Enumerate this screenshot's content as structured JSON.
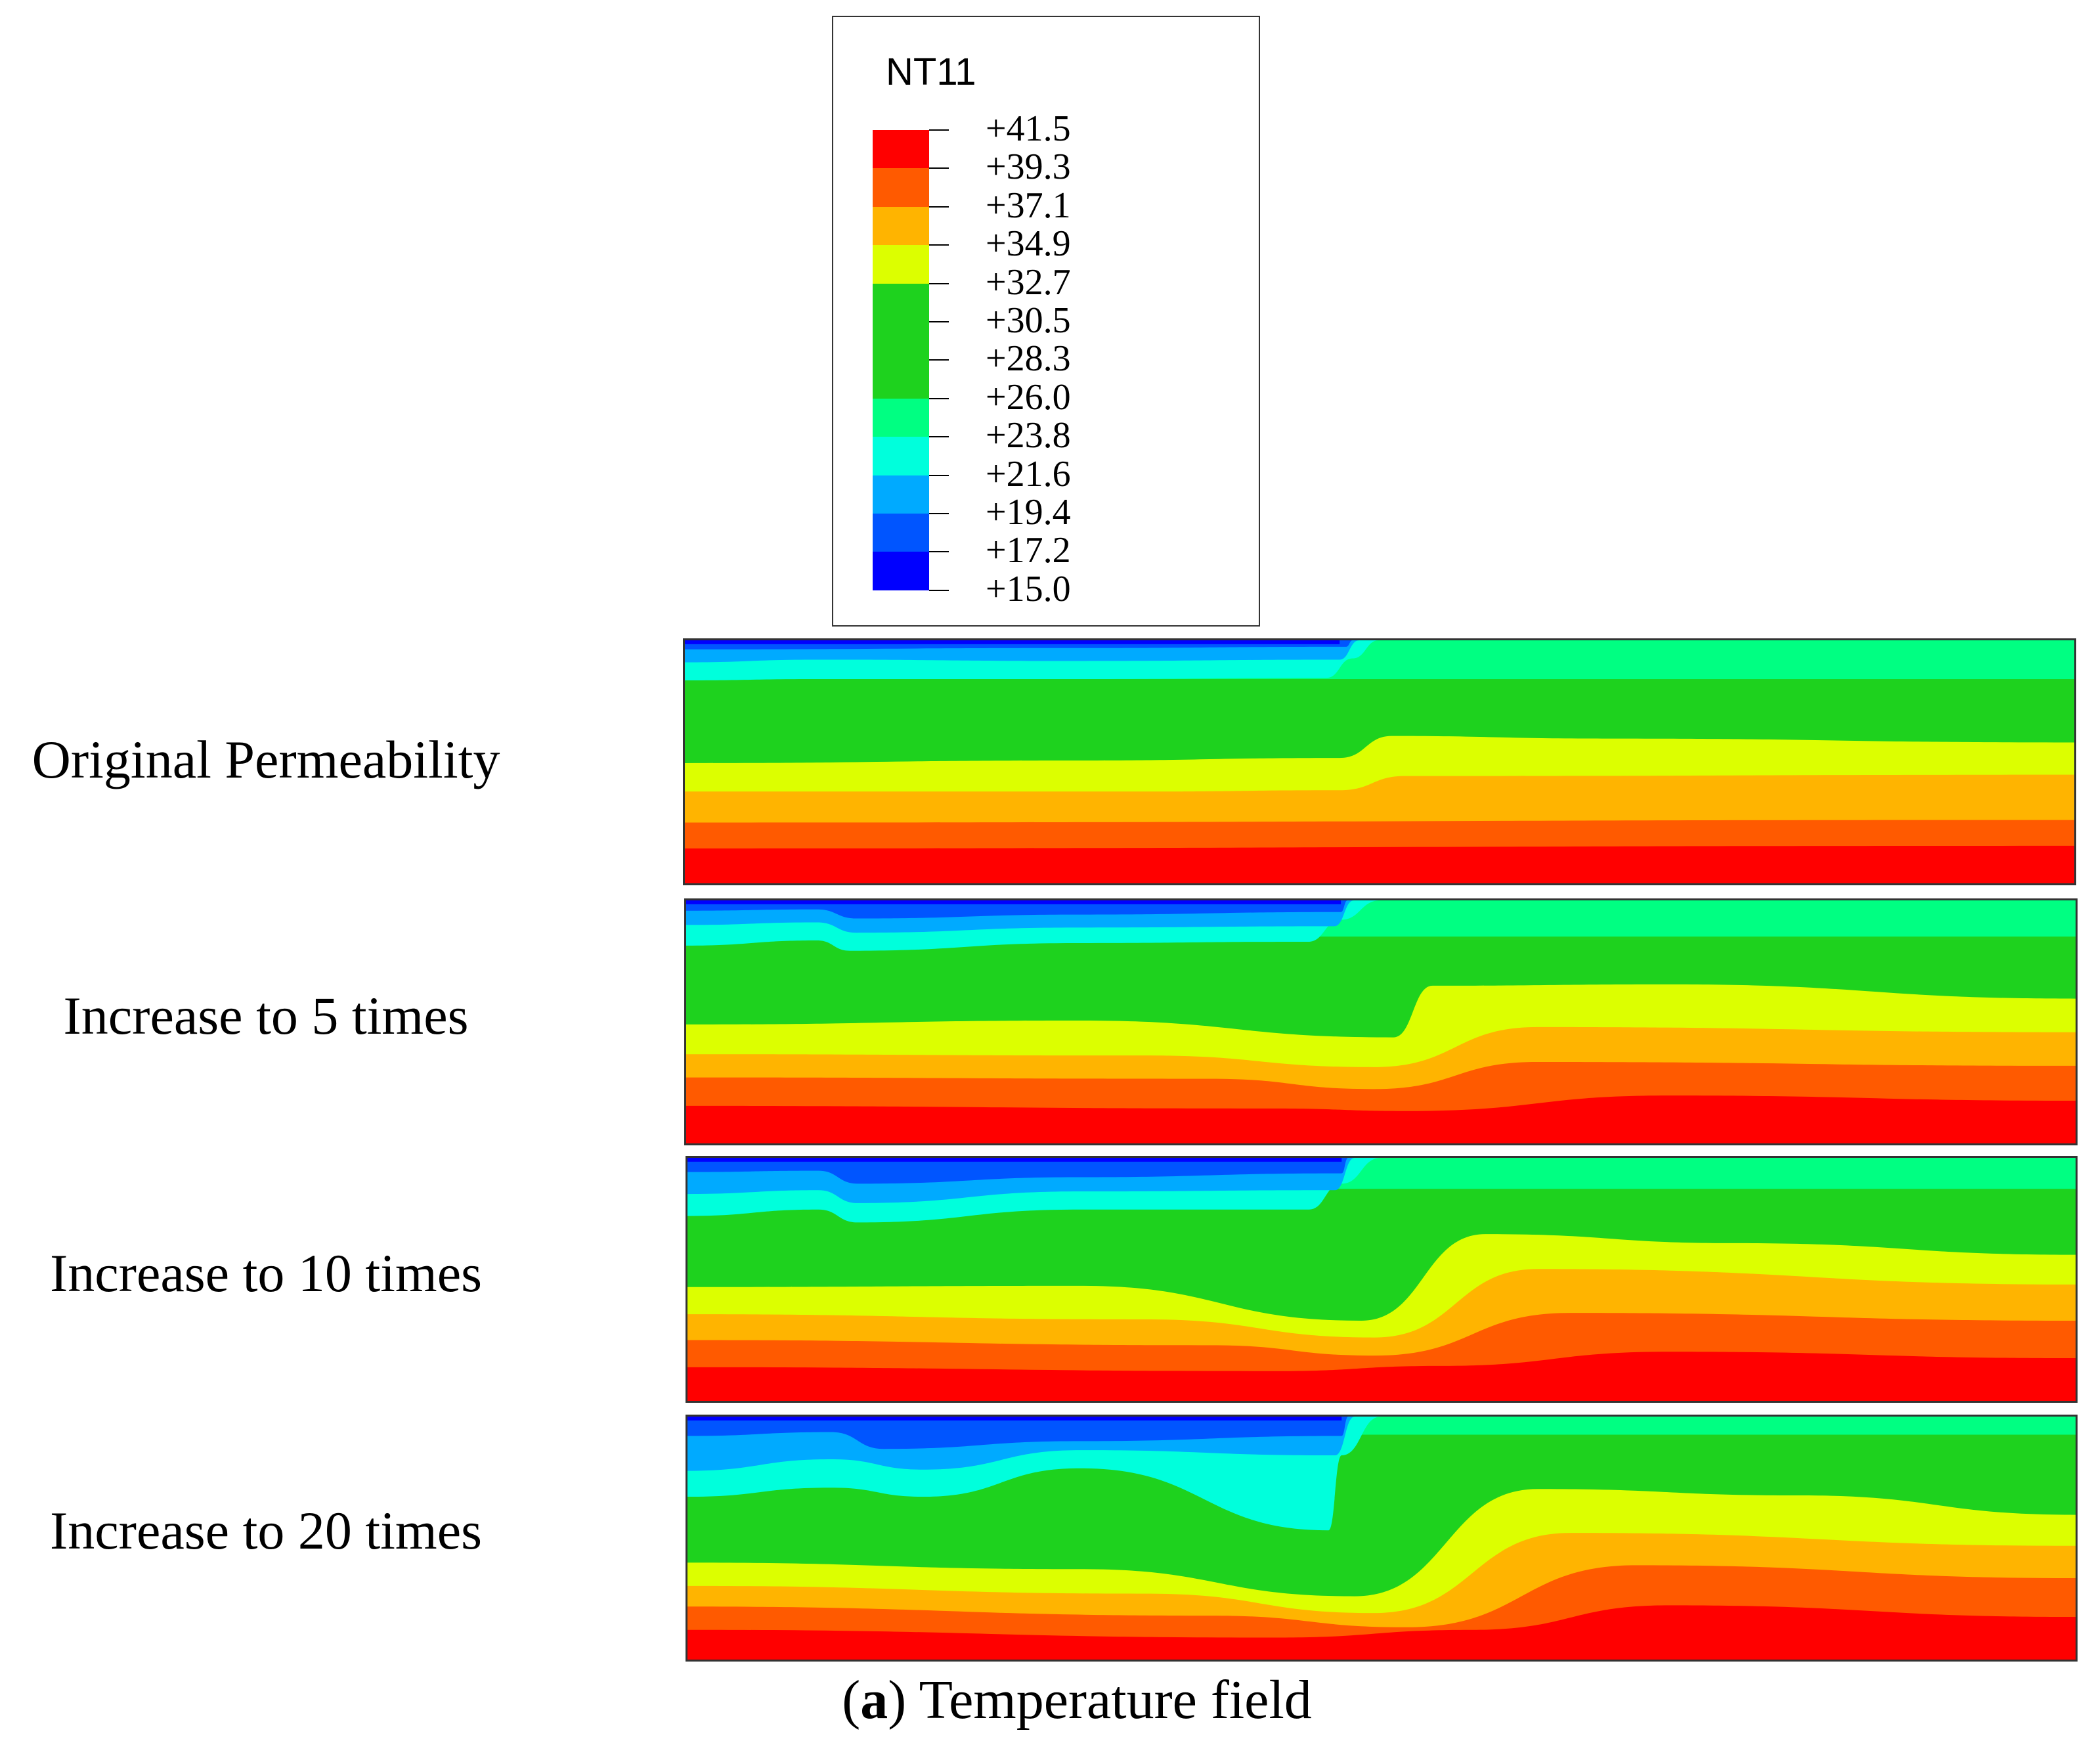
{
  "legend": {
    "variable": "NT11",
    "values": [
      "+41.5",
      "+39.3",
      "+37.1",
      "+34.9",
      "+32.7",
      "+30.5",
      "+28.3",
      "+26.0",
      "+23.8",
      "+21.6",
      "+19.4",
      "+17.2",
      "+15.0"
    ],
    "colors": [
      "#ff0000",
      "#ff5a00",
      "#ffb400",
      "#dcff00",
      "#1ed21e",
      "#1ed21e",
      "#1ed21e",
      "#00ff82",
      "#00ffdc",
      "#00aaff",
      "#0055ff",
      "#0000ff"
    ]
  },
  "cases": [
    {
      "label": "Original Permeability"
    },
    {
      "label": "Increase to 5 times"
    },
    {
      "label": "Increase to 10 times"
    },
    {
      "label": "Increase to 20 times"
    }
  ],
  "caption": {
    "letter": "a",
    "text": "Temperature field"
  }
}
